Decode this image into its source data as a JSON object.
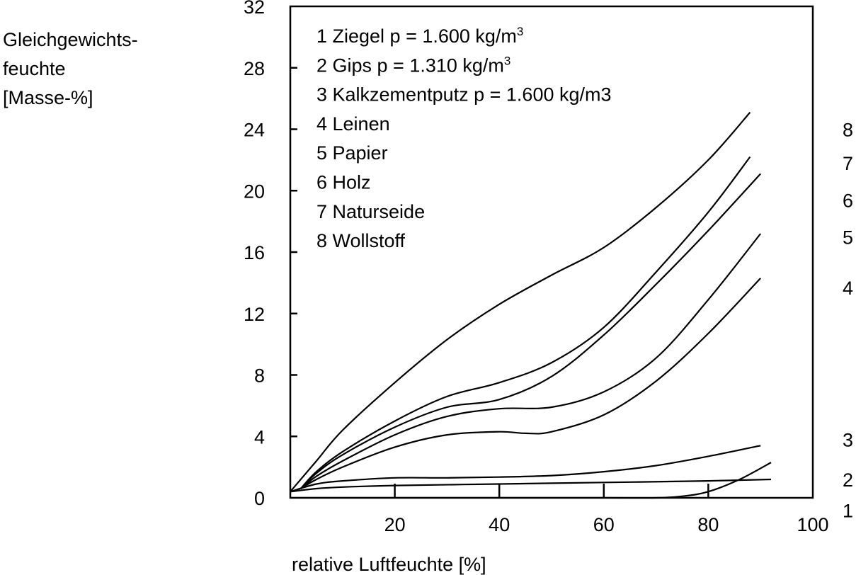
{
  "chart_data": {
    "type": "line",
    "ylabel_lines": [
      "Gleichgewichts-",
      "feuchte",
      "[Masse-%]"
    ],
    "xlabel": "relative Luftfeuchte [%]",
    "xlim": [
      0,
      100
    ],
    "ylim": [
      0,
      32
    ],
    "x_ticks": [
      20,
      40,
      60,
      80,
      100
    ],
    "y_ticks": [
      0,
      4,
      8,
      12,
      16,
      20,
      24,
      28,
      32
    ],
    "legend": [
      {
        "num": "1",
        "name": "Ziegel",
        "rho": "1.600",
        "unit": "kg/m",
        "sup": "3"
      },
      {
        "num": "2",
        "name": "Gips",
        "rho": "1.310",
        "unit": "kg/m",
        "sup": "3"
      },
      {
        "num": "3",
        "name": "Kalkzementputz",
        "rho": "1.600",
        "unit": "kg/m3",
        "sup": ""
      },
      {
        "num": "4",
        "name": "Leinen"
      },
      {
        "num": "5",
        "name": "Papier"
      },
      {
        "num": "6",
        "name": "Holz"
      },
      {
        "num": "7",
        "name": "Naturseide"
      },
      {
        "num": "8",
        "name": "Wollstoff"
      }
    ],
    "series": [
      {
        "label": "1",
        "x": [
          0,
          20,
          40,
          60,
          70,
          75,
          80,
          86,
          92
        ],
        "y": [
          0.0,
          0.0,
          0.0,
          0.0,
          0.0,
          0.1,
          0.4,
          1.2,
          2.3
        ]
      },
      {
        "label": "2",
        "x": [
          0,
          5,
          10,
          20,
          40,
          60,
          80,
          92
        ],
        "y": [
          0.4,
          0.6,
          0.7,
          0.8,
          0.9,
          1.0,
          1.1,
          1.2
        ]
      },
      {
        "label": "3",
        "x": [
          0,
          5,
          10,
          20,
          30,
          40,
          50,
          60,
          70,
          80,
          90
        ],
        "y": [
          0.4,
          0.9,
          1.1,
          1.3,
          1.3,
          1.35,
          1.45,
          1.7,
          2.1,
          2.7,
          3.4
        ]
      },
      {
        "label": "4",
        "x": [
          2,
          5,
          10,
          20,
          30,
          40,
          45,
          50,
          60,
          70,
          80,
          90
        ],
        "y": [
          0.6,
          1.2,
          2.0,
          3.3,
          4.1,
          4.3,
          4.2,
          4.3,
          5.4,
          7.6,
          10.7,
          14.3
        ]
      },
      {
        "label": "5",
        "x": [
          2,
          5,
          10,
          20,
          30,
          40,
          50,
          60,
          70,
          80,
          90
        ],
        "y": [
          0.6,
          1.4,
          2.4,
          4.1,
          5.3,
          5.8,
          5.9,
          6.9,
          9.1,
          12.9,
          17.2
        ]
      },
      {
        "label": "6",
        "x": [
          2,
          5,
          10,
          20,
          30,
          40,
          50,
          60,
          70,
          80,
          90
        ],
        "y": [
          0.6,
          1.6,
          2.8,
          4.6,
          5.9,
          6.4,
          7.9,
          10.6,
          13.9,
          17.4,
          21.1
        ]
      },
      {
        "label": "7",
        "x": [
          2,
          5,
          10,
          20,
          30,
          40,
          50,
          60,
          70,
          80,
          88
        ],
        "y": [
          0.6,
          1.7,
          3.0,
          5.0,
          6.6,
          7.5,
          8.8,
          11.1,
          14.7,
          18.6,
          22.2
        ]
      },
      {
        "label": "8",
        "x": [
          0,
          5,
          10,
          20,
          30,
          40,
          50,
          60,
          70,
          80,
          88
        ],
        "y": [
          0.4,
          2.4,
          4.4,
          7.5,
          10.3,
          12.6,
          14.5,
          16.3,
          18.9,
          22.0,
          25.1
        ]
      }
    ],
    "end_labels": [
      {
        "label": "8",
        "y": 24.0
      },
      {
        "label": "7",
        "y": 21.8
      },
      {
        "label": "6",
        "y": 19.4
      },
      {
        "label": "5",
        "y": 17.0
      },
      {
        "label": "4",
        "y": 13.7
      },
      {
        "label": "3",
        "y": 3.8
      },
      {
        "label": "2",
        "y": 1.2
      },
      {
        "label": "1",
        "y": -0.8
      }
    ]
  }
}
